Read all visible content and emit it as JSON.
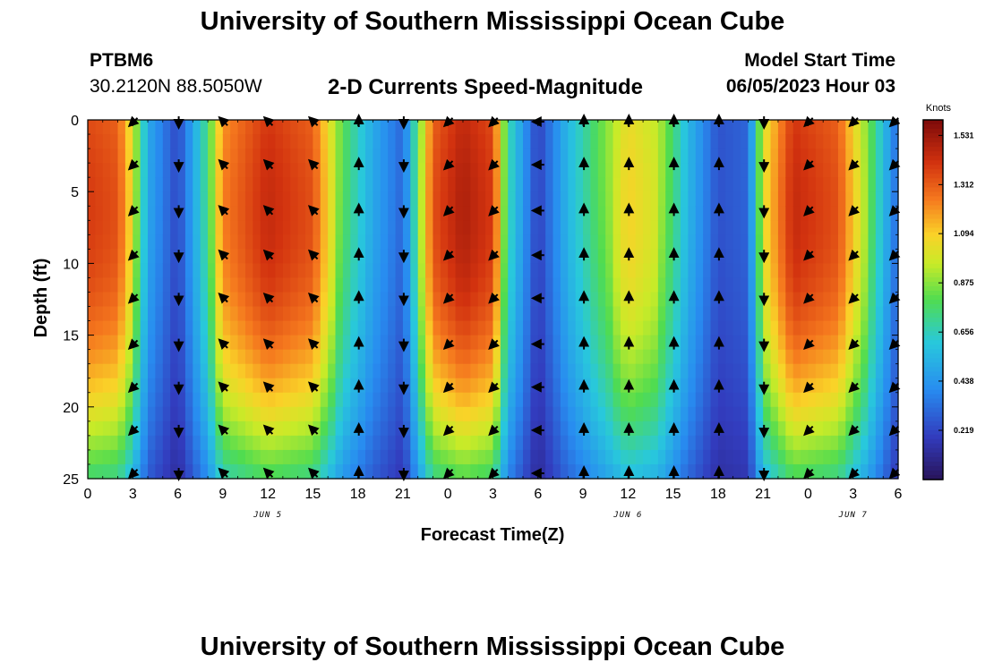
{
  "header": {
    "title": "University of Southern Mississippi Ocean Cube",
    "station_id": "PTBM6",
    "station_coords": "30.2120N  88.5050W",
    "plot_title": "2-D Currents Speed-Magnitude",
    "model_start_label": "Model Start Time",
    "model_start_value": "06/05/2023 Hour 03"
  },
  "footer": {
    "title": "University of Southern Mississippi Ocean Cube"
  },
  "chart_data": {
    "type": "heatmap",
    "title": "2-D Currents Speed-Magnitude",
    "xlabel": "Forecast Time(Z)",
    "ylabel": "Depth (ft)",
    "x_hours_from_start": [
      0,
      54
    ],
    "x_tick_labels": [
      "0",
      "3",
      "6",
      "9",
      "12",
      "15",
      "18",
      "21",
      "0",
      "3",
      "6",
      "9",
      "12",
      "15",
      "18",
      "21",
      "0",
      "3",
      "6"
    ],
    "date_labels": [
      {
        "hour": 12,
        "label": "JUN 5"
      },
      {
        "hour": 36,
        "label": "JUN 6"
      },
      {
        "hour": 51,
        "label": "JUN 7"
      }
    ],
    "y_ticks": [
      0,
      5,
      10,
      15,
      20,
      25
    ],
    "ylim": [
      0,
      25
    ],
    "colorbar": {
      "label": "Knots",
      "range": [
        0,
        1.6
      ],
      "ticks": [
        "1.531",
        "1.312",
        "1.094",
        "0.875",
        "0.656",
        "0.438",
        "0.219"
      ],
      "tick_values": [
        1.531,
        1.312,
        1.094,
        0.875,
        0.656,
        0.438,
        0.219
      ]
    },
    "surface_speed_knots_by_hour": [
      {
        "hour": 0,
        "speed": 1.35
      },
      {
        "hour": 2,
        "speed": 1.3
      },
      {
        "hour": 3,
        "speed": 1.0
      },
      {
        "hour": 4,
        "speed": 0.5
      },
      {
        "hour": 6,
        "speed": 0.22
      },
      {
        "hour": 8,
        "speed": 0.75
      },
      {
        "hour": 9,
        "speed": 1.2
      },
      {
        "hour": 12,
        "speed": 1.4
      },
      {
        "hour": 15,
        "speed": 1.3
      },
      {
        "hour": 17,
        "speed": 0.8
      },
      {
        "hour": 19,
        "speed": 0.5
      },
      {
        "hour": 21,
        "speed": 0.3
      },
      {
        "hour": 22,
        "speed": 0.8
      },
      {
        "hour": 23,
        "speed": 1.3
      },
      {
        "hour": 25,
        "speed": 1.45
      },
      {
        "hour": 27,
        "speed": 1.35
      },
      {
        "hour": 28,
        "speed": 0.7
      },
      {
        "hour": 30,
        "speed": 0.2
      },
      {
        "hour": 32,
        "speed": 0.55
      },
      {
        "hour": 36,
        "speed": 1.05
      },
      {
        "hour": 38,
        "speed": 0.95
      },
      {
        "hour": 40,
        "speed": 0.55
      },
      {
        "hour": 42,
        "speed": 0.25
      },
      {
        "hour": 44,
        "speed": 0.3
      },
      {
        "hour": 45,
        "speed": 1.0
      },
      {
        "hour": 47,
        "speed": 1.4
      },
      {
        "hour": 50,
        "speed": 1.3
      },
      {
        "hour": 52,
        "speed": 0.85
      },
      {
        "hour": 54,
        "speed": 0.3
      }
    ],
    "arrow_hours": [
      3,
      6,
      9,
      12,
      15,
      18,
      21,
      24,
      27,
      30,
      33,
      36,
      39,
      42,
      45,
      48,
      51,
      54
    ],
    "arrow_depths": [
      0,
      3,
      6.2,
      9.3,
      12.3,
      15.5,
      18.5,
      21.5,
      24.5
    ],
    "flow_direction_by_hour": [
      {
        "hour": 3,
        "direction": "southwest"
      },
      {
        "hour": 6,
        "direction": "south"
      },
      {
        "hour": 9,
        "direction": "northwest"
      },
      {
        "hour": 12,
        "direction": "northwest"
      },
      {
        "hour": 15,
        "direction": "northwest"
      },
      {
        "hour": 18,
        "direction": "north"
      },
      {
        "hour": 21,
        "direction": "south"
      },
      {
        "hour": 24,
        "direction": "southwest"
      },
      {
        "hour": 27,
        "direction": "southwest"
      },
      {
        "hour": 30,
        "direction": "west"
      },
      {
        "hour": 33,
        "direction": "north"
      },
      {
        "hour": 36,
        "direction": "north"
      },
      {
        "hour": 39,
        "direction": "north"
      },
      {
        "hour": 42,
        "direction": "north"
      },
      {
        "hour": 45,
        "direction": "south"
      },
      {
        "hour": 48,
        "direction": "southwest"
      },
      {
        "hour": 51,
        "direction": "southwest"
      },
      {
        "hour": 54,
        "direction": "southwest"
      }
    ]
  }
}
